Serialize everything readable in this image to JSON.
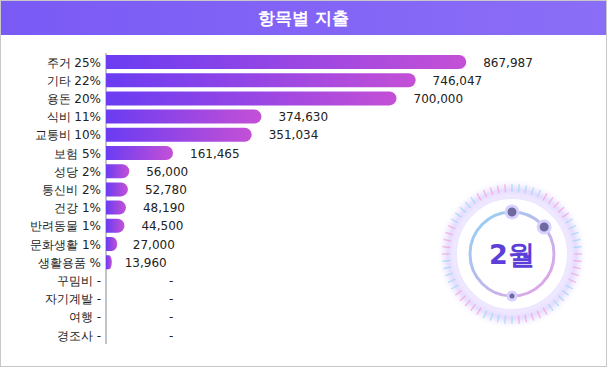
{
  "chart_data": {
    "type": "bar",
    "orientation": "horizontal",
    "title": "항목별 지출",
    "annotations": [
      "2월"
    ],
    "categories": [
      "주거 25%",
      "기타 22%",
      "용돈 20%",
      "식비 11%",
      "교통비 10%",
      "보험 5%",
      "성당 2%",
      "통신비 2%",
      "건강 1%",
      "반려동물 1%",
      "문화생활 1%",
      "생활용품 %",
      "꾸밈비 -",
      "자기계발 -",
      "여행 -",
      "경조사 -"
    ],
    "values": [
      867987,
      746047,
      700000,
      374630,
      351034,
      161465,
      56000,
      52780,
      48190,
      44500,
      27000,
      13960,
      null,
      null,
      null,
      null
    ],
    "value_labels": [
      "867,987",
      "746,047",
      "700,000",
      "374,630",
      "351,034",
      "161,465",
      "56,000",
      "52,780",
      "48,190",
      "44,500",
      "27,000",
      "13,960",
      "-",
      "-",
      "-",
      "-"
    ],
    "data_labels": true,
    "tick_labels": "y",
    "grid": false,
    "color": "#6a3cf2",
    "xlim": [
      0,
      1000000
    ]
  }
}
